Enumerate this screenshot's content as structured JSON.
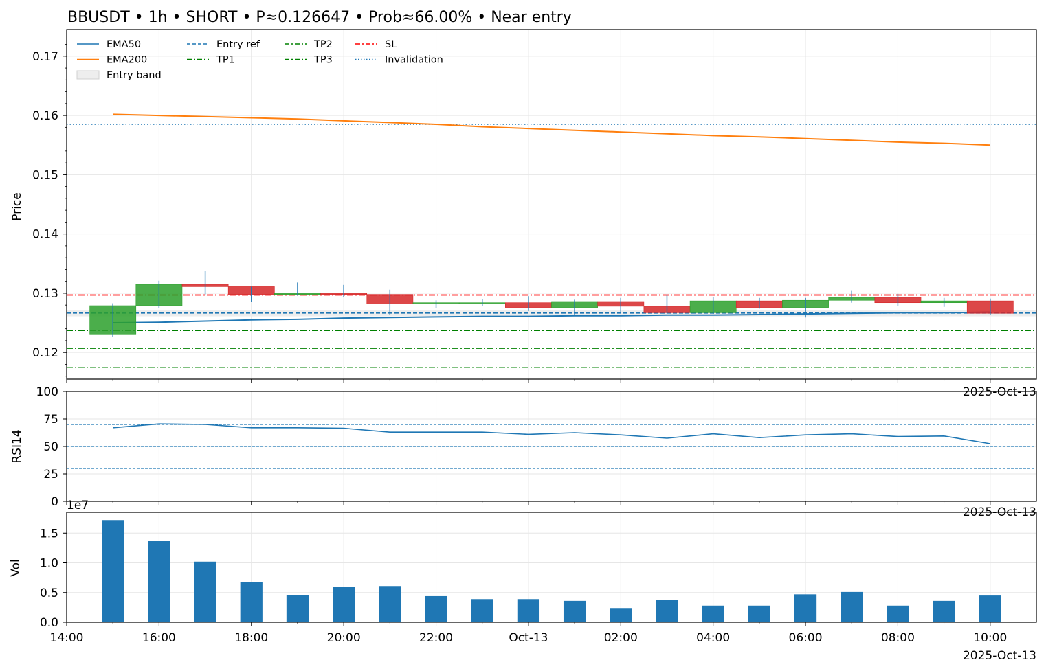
{
  "chart_data": {
    "type": "candlestick",
    "title": "BBUSDT • 1h • SHORT • P≈0.126647 • Prob≈66.00% • Near entry",
    "x_tick_labels": [
      "14:00",
      "16:00",
      "18:00",
      "20:00",
      "22:00",
      "Oct-13",
      "02:00",
      "04:00",
      "06:00",
      "08:00",
      "10:00"
    ],
    "date_label": "2025-Oct-13",
    "grid": true,
    "price_panel": {
      "ylabel": "Price",
      "ylim": [
        0.1155,
        0.1745
      ],
      "yticks": [
        0.12,
        0.13,
        0.14,
        0.15,
        0.16,
        0.17
      ],
      "ytick_labels": [
        "0.12",
        "0.13",
        "0.14",
        "0.15",
        "0.16",
        "0.17"
      ],
      "candles": [
        {
          "time": "15:00",
          "open": 0.123,
          "high": 0.1283,
          "low": 0.1226,
          "close": 0.1279
        },
        {
          "time": "16:00",
          "open": 0.1279,
          "high": 0.1321,
          "low": 0.1275,
          "close": 0.1315
        },
        {
          "time": "17:00",
          "open": 0.1315,
          "high": 0.1338,
          "low": 0.1298,
          "close": 0.1311
        },
        {
          "time": "18:00",
          "open": 0.1311,
          "high": 0.1311,
          "low": 0.1285,
          "close": 0.1298
        },
        {
          "time": "19:00",
          "open": 0.1298,
          "high": 0.1318,
          "low": 0.1296,
          "close": 0.13
        },
        {
          "time": "20:00",
          "open": 0.13,
          "high": 0.1314,
          "low": 0.1293,
          "close": 0.1298
        },
        {
          "time": "21:00",
          "open": 0.1298,
          "high": 0.1306,
          "low": 0.1263,
          "close": 0.1282
        },
        {
          "time": "22:00",
          "open": 0.1282,
          "high": 0.1288,
          "low": 0.1275,
          "close": 0.1284
        },
        {
          "time": "23:00",
          "open": 0.1284,
          "high": 0.129,
          "low": 0.1279,
          "close": 0.1284
        },
        {
          "time": "00:00",
          "open": 0.1284,
          "high": 0.1295,
          "low": 0.127,
          "close": 0.1276
        },
        {
          "time": "01:00",
          "open": 0.1276,
          "high": 0.1289,
          "low": 0.1262,
          "close": 0.1286
        },
        {
          "time": "02:00",
          "open": 0.1286,
          "high": 0.1292,
          "low": 0.1266,
          "close": 0.1278
        },
        {
          "time": "03:00",
          "open": 0.1278,
          "high": 0.1298,
          "low": 0.1266,
          "close": 0.1267
        },
        {
          "time": "04:00",
          "open": 0.1267,
          "high": 0.1294,
          "low": 0.1265,
          "close": 0.1287
        },
        {
          "time": "05:00",
          "open": 0.1287,
          "high": 0.1292,
          "low": 0.1274,
          "close": 0.1276
        },
        {
          "time": "06:00",
          "open": 0.1276,
          "high": 0.1292,
          "low": 0.1259,
          "close": 0.1288
        },
        {
          "time": "07:00",
          "open": 0.1288,
          "high": 0.1305,
          "low": 0.1284,
          "close": 0.1293
        },
        {
          "time": "08:00",
          "open": 0.1293,
          "high": 0.1299,
          "low": 0.1278,
          "close": 0.1284
        },
        {
          "time": "09:00",
          "open": 0.1284,
          "high": 0.1292,
          "low": 0.1277,
          "close": 0.1287
        },
        {
          "time": "10:00",
          "open": 0.1287,
          "high": 0.1291,
          "low": 0.1263,
          "close": 0.1266
        }
      ],
      "ema50": [
        0.125,
        0.1251,
        0.1253,
        0.1255,
        0.1256,
        0.1258,
        0.1259,
        0.126,
        0.1261,
        0.1261,
        0.1262,
        0.1262,
        0.1263,
        0.1263,
        0.1264,
        0.1265,
        0.1266,
        0.1267,
        0.1267,
        0.1268
      ],
      "ema200": [
        0.1602,
        0.16,
        0.1598,
        0.1596,
        0.1594,
        0.1591,
        0.1588,
        0.1585,
        0.1581,
        0.1578,
        0.1575,
        0.1572,
        0.1569,
        0.1566,
        0.1564,
        0.1561,
        0.1558,
        0.1555,
        0.1553,
        0.155
      ],
      "entry_band": [
        0.1261,
        0.1272
      ],
      "levels": {
        "entry_ref": 0.12665,
        "sl": 0.1297,
        "tp1": 0.1237,
        "tp2": 0.1207,
        "tp3": 0.1175,
        "invalidation": 0.1585
      },
      "legend": [
        {
          "label": "EMA50",
          "color": "#1f77b4",
          "style": "solid"
        },
        {
          "label": "EMA200",
          "color": "#ff7f0e",
          "style": "solid"
        },
        {
          "label": "Entry band",
          "color": "#eeeeee",
          "style": "patch"
        },
        {
          "label": "Entry ref",
          "color": "#1f77b4",
          "style": "dashed"
        },
        {
          "label": "TP1",
          "color": "#008000",
          "style": "dashdot"
        },
        {
          "label": "TP2",
          "color": "#008000",
          "style": "dashdot"
        },
        {
          "label": "TP3",
          "color": "#008000",
          "style": "dashdot"
        },
        {
          "label": "SL",
          "color": "#ff0000",
          "style": "dashdot"
        },
        {
          "label": "Invalidation",
          "color": "#1f77b4",
          "style": "dotted"
        }
      ],
      "legend_position": "top-left"
    },
    "rsi_panel": {
      "ylabel": "RSI14",
      "ylim": [
        0,
        100
      ],
      "yticks": [
        0,
        25,
        50,
        75,
        100
      ],
      "ytick_labels": [
        "0",
        "25",
        "50",
        "75",
        "100"
      ],
      "ref_levels": [
        70,
        50,
        30
      ],
      "values": [
        67,
        70.5,
        70,
        67,
        67,
        66.5,
        63,
        63,
        63,
        61,
        62.5,
        60.5,
        57.5,
        61.5,
        58,
        60.5,
        61.5,
        59,
        59.5,
        52.5
      ]
    },
    "volume_panel": {
      "ylabel": "Vol",
      "ylim": [
        0,
        18500000
      ],
      "yticks": [
        0,
        5000000,
        10000000,
        15000000
      ],
      "ytick_labels": [
        "0.0",
        "0.5",
        "1.0",
        "1.5"
      ],
      "offset_label": "1e7",
      "values": [
        17200000,
        13700000,
        10200000,
        6800000,
        4600000,
        5900000,
        6100000,
        4400000,
        3900000,
        3900000,
        3600000,
        2400000,
        3700000,
        2800000,
        2800000,
        4700000,
        5100000,
        2800000,
        3600000,
        4500000
      ]
    },
    "colors": {
      "up": "#2ca02c",
      "down": "#d62728",
      "wick": "#1f77b4",
      "volume": "#1f77b4",
      "ema50": "#1f77b4",
      "ema200": "#ff7f0e",
      "rsi": "#1f77b4",
      "tp": "#008000",
      "sl": "#ff0000",
      "grid": "#e6e6e6"
    }
  }
}
